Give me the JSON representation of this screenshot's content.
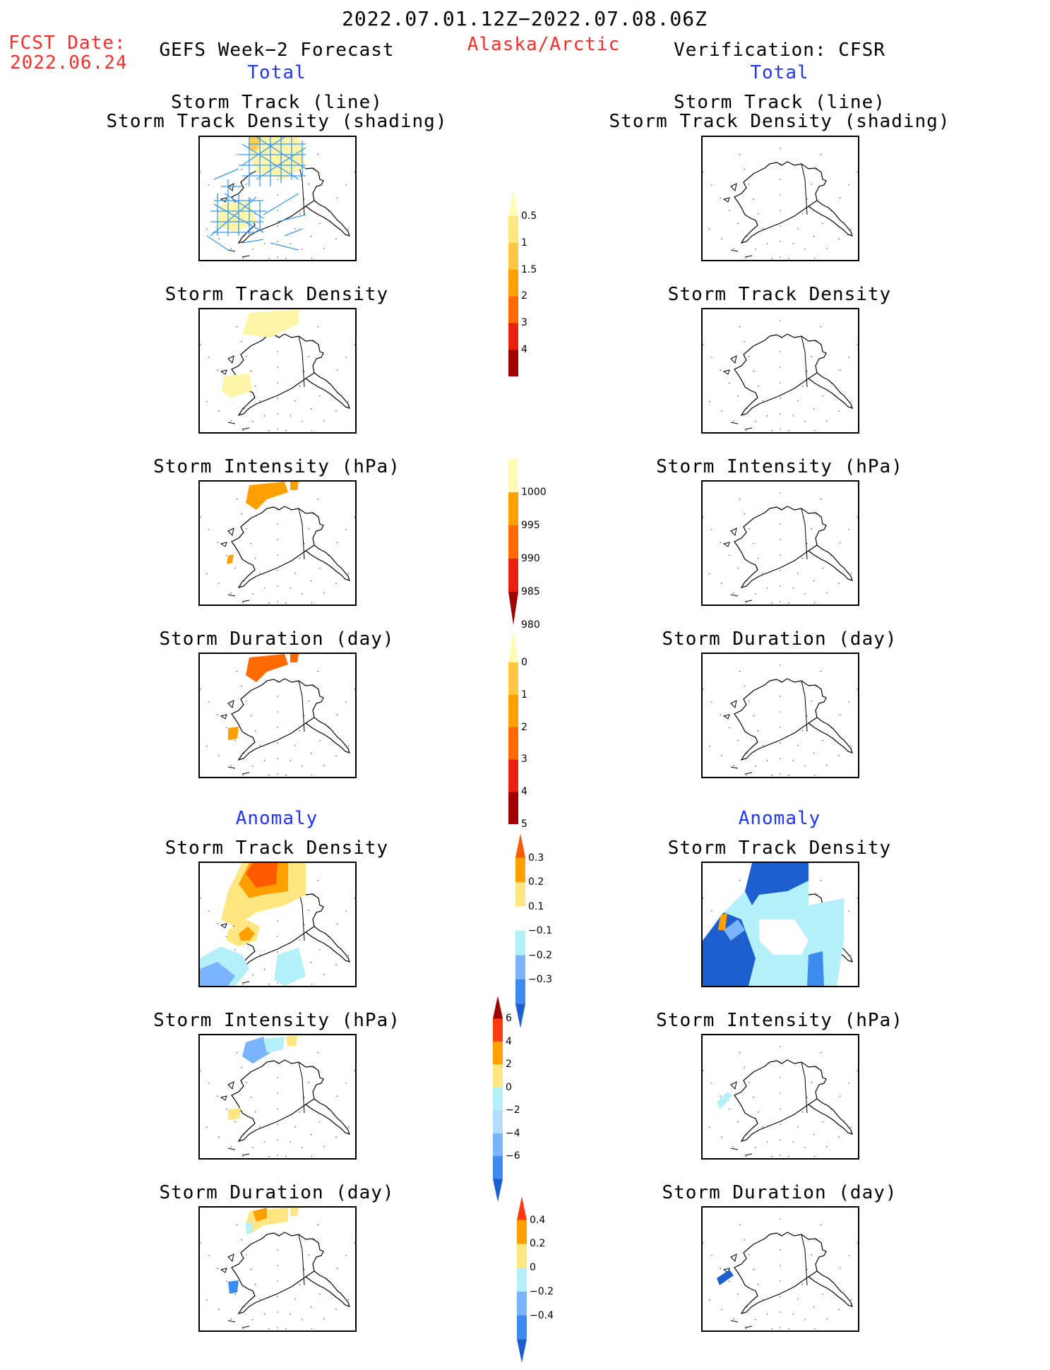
{
  "header": {
    "date_range": "2022.07.01.12Z−2022.07.08.06Z",
    "fcst_label": "FCST Date:",
    "fcst_date": "2022.06.24",
    "left_title": "GEFS Week−2 Forecast",
    "region": "Alaska/Arctic",
    "right_title": "Verification: CFSR",
    "total_label": "Total",
    "anomaly_label": "Anomaly"
  },
  "panel_titles": {
    "track_line": "Storm Track (line)",
    "track_shading": "Storm Track Density (shading)",
    "density": "Storm Track Density",
    "intensity": "Storm Intensity (hPa)",
    "duration": "Storm Duration (day)"
  },
  "colors": {
    "text_red": "#ff2a2a",
    "text_blue": "#1f35ff",
    "track_line": "#3399ff",
    "pale_yellow": "#fff5a8",
    "light_orange": "#ffd050",
    "orange": "#ffa000",
    "dark_orange": "#ff6a00",
    "red": "#e82010",
    "dark_red": "#a00000",
    "light_blue": "#b4f0fa",
    "mid_blue": "#7ab4ff",
    "blue": "#3c8cf0",
    "dark_blue": "#1e5fd0"
  },
  "chart_data": [
    {
      "type": "heatmap",
      "title": "Storm Track (line) / Storm Track Density (shading)",
      "panels": [
        "GEFS Week-2 Forecast Total",
        "Verification: CFSR Total"
      ],
      "colorbar": {
        "levels": [
          0.5,
          1,
          1.5,
          2,
          3,
          4
        ],
        "labels": [
          "0.5",
          "1",
          "1.5",
          "2",
          "3",
          "4"
        ],
        "colors": [
          "#fffab4",
          "#ffe680",
          "#ffc840",
          "#ffa000",
          "#ff6a00",
          "#e82010",
          "#a00000"
        ]
      },
      "grid": false
    },
    {
      "type": "heatmap",
      "title": "Storm Track Density",
      "panels": [
        "GEFS Week-2 Forecast Total",
        "Verification: CFSR Total"
      ],
      "colorbar": {
        "levels": [
          0.5,
          1,
          1.5,
          2,
          3,
          4
        ],
        "labels": [
          "0.5",
          "1",
          "1.5",
          "2",
          "3",
          "4"
        ]
      },
      "grid": false
    },
    {
      "type": "heatmap",
      "title": "Storm Intensity (hPa)",
      "panels": [
        "GEFS Week-2 Forecast Total",
        "Verification: CFSR Total"
      ],
      "colorbar": {
        "levels": [
          1000,
          995,
          990,
          985,
          980
        ],
        "labels": [
          "1000",
          "995",
          "990",
          "985",
          "980"
        ],
        "colors": [
          "#fffab4",
          "#ffa000",
          "#ff6a00",
          "#e82010",
          "#a00000"
        ]
      },
      "grid": false
    },
    {
      "type": "heatmap",
      "title": "Storm Duration (day)",
      "panels": [
        "GEFS Week-2 Forecast Total",
        "Verification: CFSR Total"
      ],
      "colorbar": {
        "levels": [
          0,
          1,
          2,
          3,
          4,
          5
        ],
        "labels": [
          "0",
          "1",
          "2",
          "3",
          "4",
          "5"
        ],
        "colors": [
          "#fffab4",
          "#ffc840",
          "#ffa000",
          "#ff6a00",
          "#e82010",
          "#a00000"
        ]
      },
      "grid": false
    },
    {
      "type": "heatmap",
      "title": "Anomaly Storm Track Density",
      "panels": [
        "GEFS Week-2 Forecast Anomaly",
        "Verification: CFSR Anomaly"
      ],
      "colorbar": {
        "levels": [
          0.3,
          0.2,
          0.1,
          -0.1,
          -0.2,
          -0.3
        ],
        "labels": [
          "0.3",
          "0.2",
          "0.1",
          "−0.1",
          "−0.2",
          "−0.3"
        ],
        "colors": [
          "#ff5a00",
          "#ffa000",
          "#ffe680",
          "#ffffff",
          "#b4f0fa",
          "#7ab4ff",
          "#3c8cf0",
          "#1e5fd0"
        ]
      },
      "grid": false
    },
    {
      "type": "heatmap",
      "title": "Anomaly Storm Intensity (hPa)",
      "panels": [
        "GEFS Week-2 Forecast Anomaly",
        "Verification: CFSR Anomaly"
      ],
      "colorbar": {
        "levels": [
          6,
          4,
          2,
          0,
          -2,
          -4,
          -6
        ],
        "labels": [
          "6",
          "4",
          "2",
          "0",
          "−2",
          "−4",
          "−6"
        ],
        "colors": [
          "#a00000",
          "#ff3a10",
          "#ffa000",
          "#ffe680",
          "#b4f0fa",
          "#b4dcff",
          "#7ab4ff",
          "#3c8cf0",
          "#1e5fd0"
        ]
      },
      "grid": false
    },
    {
      "type": "heatmap",
      "title": "Anomaly Storm Duration (day)",
      "panels": [
        "GEFS Week-2 Forecast Anomaly",
        "Verification: CFSR Anomaly"
      ],
      "colorbar": {
        "levels": [
          0.4,
          0.2,
          0,
          -0.2,
          -0.4
        ],
        "labels": [
          "0.4",
          "0.2",
          "0",
          "−0.2",
          "−0.4"
        ],
        "colors": [
          "#ff3a10",
          "#ffa000",
          "#ffe680",
          "#b4f0fa",
          "#7ab4ff",
          "#3c8cf0",
          "#1e5fd0"
        ]
      },
      "grid": false
    }
  ]
}
